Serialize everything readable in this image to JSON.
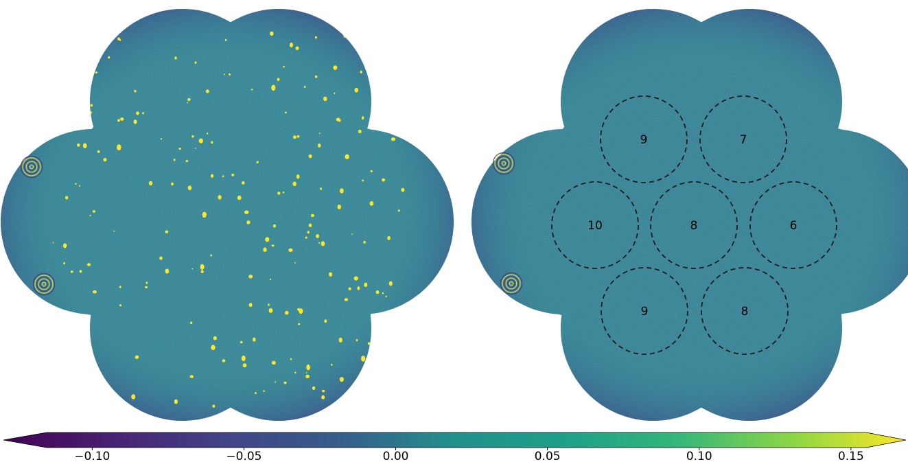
{
  "figure": {
    "panels": [
      {
        "id": "left",
        "type": "sky-residual-map",
        "compact_sources": "bright yellow point sources scattered over field"
      },
      {
        "id": "right",
        "type": "sky-residual-map",
        "circles": [
          {
            "label": "9"
          },
          {
            "label": "7"
          },
          {
            "label": "10"
          },
          {
            "label": "8"
          },
          {
            "label": "6"
          },
          {
            "label": "9"
          },
          {
            "label": "8"
          }
        ]
      }
    ],
    "colorbar": {
      "colormap": "viridis",
      "extend": "both",
      "ticks": [
        "−0.10",
        "−0.05",
        "0.00",
        "0.05",
        "0.10",
        "0.15"
      ],
      "tick_values": [
        -0.1,
        -0.05,
        0.0,
        0.05,
        0.1,
        0.15
      ],
      "range": [
        -0.115,
        0.155
      ]
    }
  },
  "colors": {
    "background_field": "#2e7f8e",
    "source_yellow": "#fde725",
    "ring_dark": "#46327e",
    "circle_stroke": "#1a1a1a"
  }
}
